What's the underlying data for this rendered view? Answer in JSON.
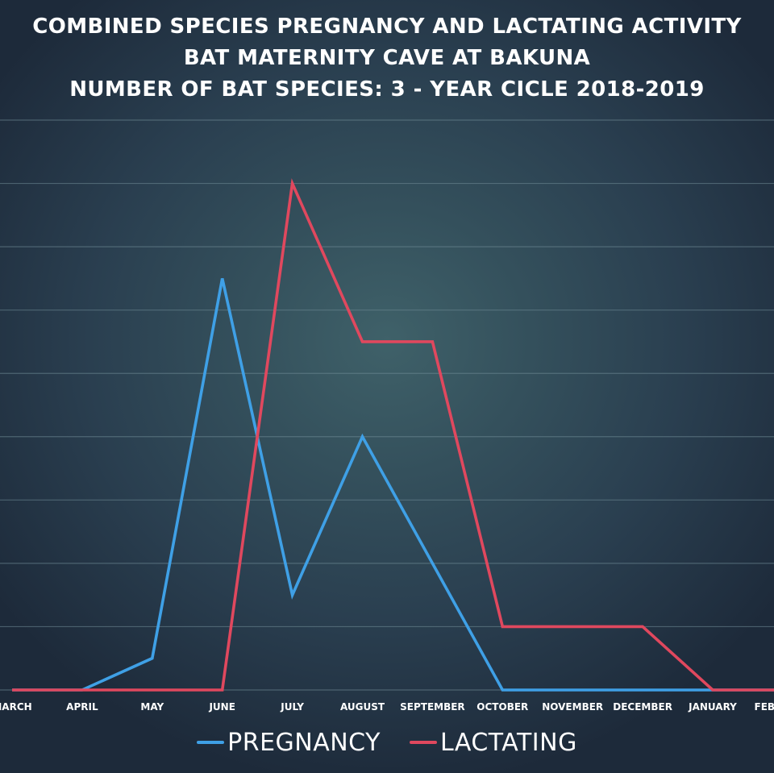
{
  "chart_data": {
    "type": "line",
    "title": [
      "COMBINED SPECIES PREGNANCY AND LACTATING ACTIVITY",
      "BAT MATERNITY CAVE AT BAKUNA",
      "NUMBER OF BAT SPECIES: 3 - YEAR CICLE 2018-2019"
    ],
    "categories": [
      "MARCH",
      "APRIL",
      "MAY",
      "JUNE",
      "JULY",
      "AUGUST",
      "SEPTEMBER",
      "OCTOBER",
      "NOVEMBER",
      "DECEMBER",
      "JANUARY",
      "FEBRUARY"
    ],
    "series": [
      {
        "name": "PREGNANCY",
        "color": "#3fa0e6",
        "values": [
          0,
          0,
          0.5,
          6.5,
          1.5,
          4,
          2,
          0,
          0,
          0,
          0,
          0
        ]
      },
      {
        "name": "LACTATING",
        "color": "#e0485e",
        "values": [
          0,
          0,
          0,
          0,
          8,
          5.5,
          5.5,
          1,
          1,
          1,
          0,
          0
        ]
      }
    ],
    "ylim": [
      0,
      9
    ],
    "grid": true,
    "legend": "bottom",
    "xlabel": "",
    "ylabel": ""
  }
}
